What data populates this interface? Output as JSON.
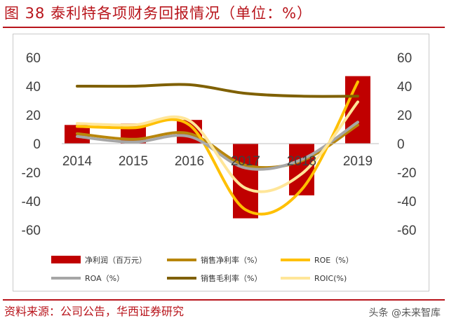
{
  "title": "图 38 泰利特各项财务回报情况（单位：%）",
  "source": "资料来源：公司公告，华西证券研究",
  "watermark": "头条 @未来智库",
  "chart_data": {
    "type": "bar",
    "categories": [
      "2014",
      "2015",
      "2016",
      "2017",
      "2018",
      "2019"
    ],
    "ylim": [
      -60,
      60
    ],
    "yticks": [
      60,
      40,
      20,
      0,
      -20,
      -40,
      -60
    ],
    "y2lim": [
      -60,
      60
    ],
    "y2ticks": [
      60,
      40,
      20,
      0,
      -20,
      -40,
      -60
    ],
    "grid": false,
    "legend_position": "bottom",
    "series": [
      {
        "name": "净利润（百万元）",
        "kind": "bar",
        "axis": "left",
        "color": "#c00000",
        "values": [
          13,
          14,
          16.5,
          -52,
          -36,
          47
        ]
      },
      {
        "name": "销售净利率（%）",
        "kind": "line",
        "axis": "right",
        "color": "#b8860b",
        "values": [
          7,
          3,
          7,
          -15,
          -12,
          13
        ]
      },
      {
        "name": "ROE（%）",
        "kind": "line",
        "axis": "right",
        "color": "#ffc000",
        "values": [
          12,
          11,
          13,
          -46,
          -32,
          43
        ]
      },
      {
        "name": "ROA（%）",
        "kind": "line",
        "axis": "right",
        "color": "#a6a6a6",
        "values": [
          5,
          1,
          5,
          -17,
          -11,
          15
        ]
      },
      {
        "name": "销售毛利率（%）",
        "kind": "line",
        "axis": "right",
        "color": "#7f6000",
        "values": [
          40,
          40,
          41,
          35,
          33,
          33
        ]
      },
      {
        "name": "ROIC(%)",
        "kind": "line",
        "axis": "right",
        "color": "#ffe699",
        "values": [
          14,
          13,
          16,
          -31,
          -21,
          29
        ]
      }
    ]
  }
}
